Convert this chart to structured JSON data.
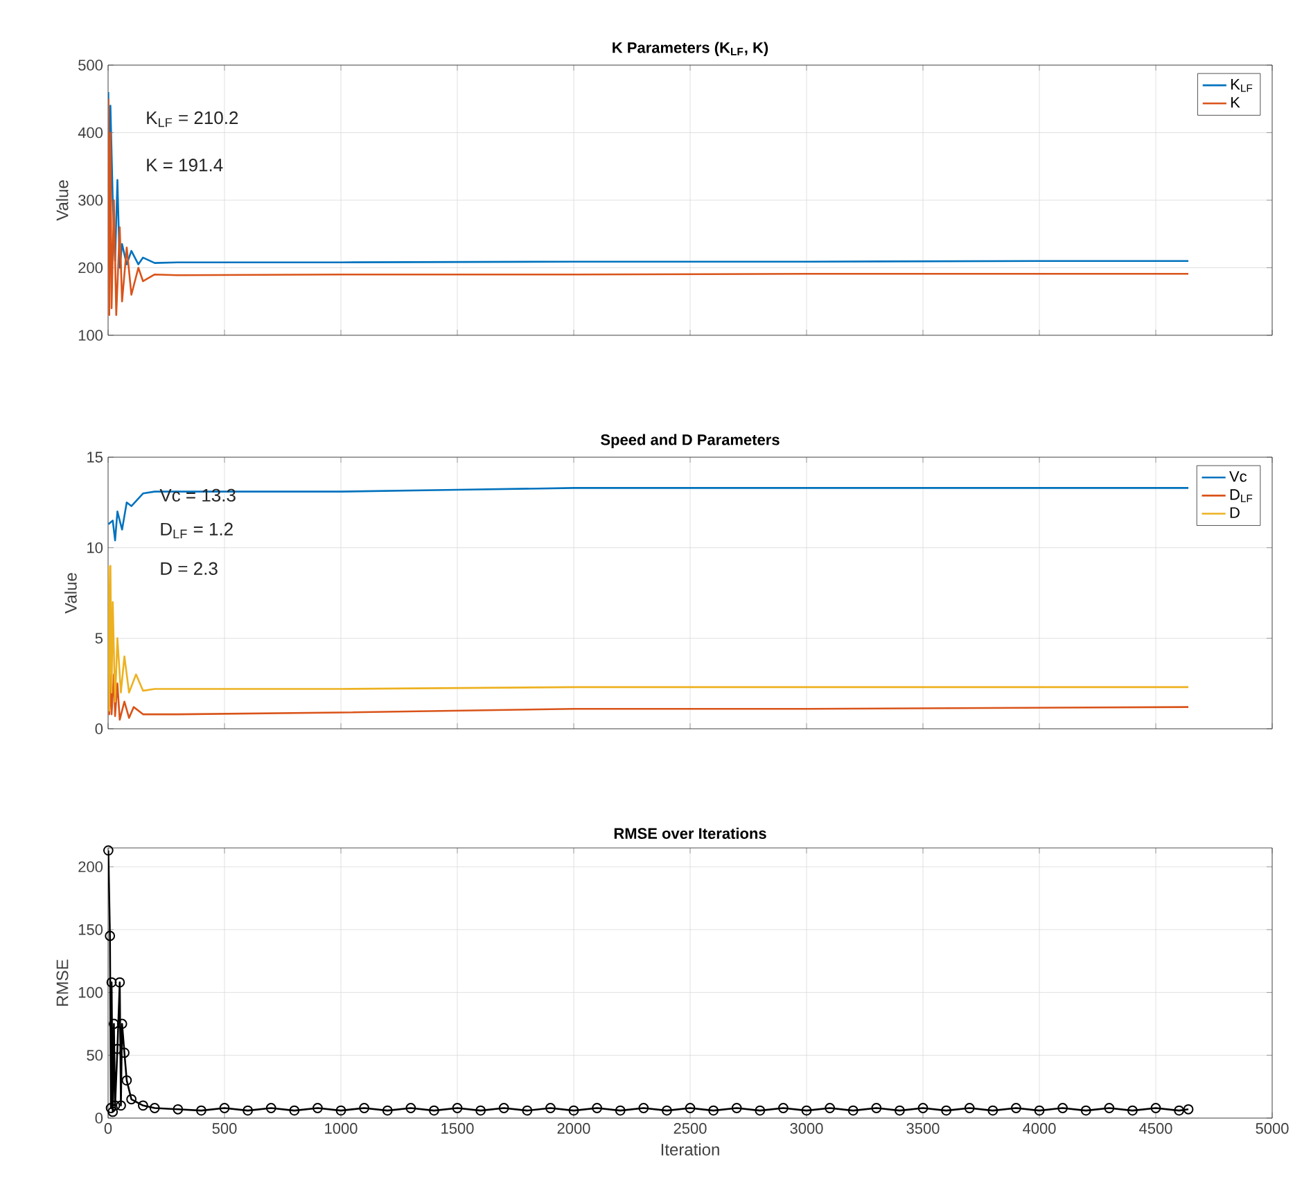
{
  "chart_data": [
    {
      "type": "line",
      "title": "K Parameters (K$_{LF}$, K)",
      "ylabel": "Value",
      "xlim": [
        0,
        5000
      ],
      "ylim": [
        100,
        500
      ],
      "xticks": [
        0,
        500,
        1000,
        1500,
        2000,
        2500,
        3000,
        3500,
        4000,
        4500,
        5000
      ],
      "yticks": [
        100,
        200,
        300,
        400,
        500
      ],
      "grid": true,
      "legend": "top right",
      "tick_labels": "y",
      "annotations": [
        "K$_{LF}$ = 210.2",
        "K = 191.4"
      ],
      "series": [
        {
          "name": "K$_{LF}$",
          "color": "#0072bd",
          "x": [
            1,
            5,
            10,
            15,
            20,
            30,
            40,
            50,
            60,
            80,
            100,
            130,
            150,
            200,
            300,
            1000,
            2000,
            3000,
            4000,
            4640
          ],
          "values": [
            460,
            200,
            440,
            null,
            300,
            210,
            330,
            200,
            235,
            205,
            225,
            205,
            215,
            207,
            208,
            208,
            209,
            209,
            210,
            210
          ]
        },
        {
          "name": "K",
          "color": "#d95319",
          "x": [
            1,
            5,
            10,
            15,
            25,
            35,
            50,
            60,
            80,
            100,
            130,
            150,
            200,
            300,
            1000,
            2000,
            3000,
            4000,
            4640
          ],
          "values": [
            450,
            130,
            400,
            140,
            300,
            130,
            260,
            150,
            230,
            160,
            200,
            180,
            190,
            189,
            190,
            190,
            191,
            191,
            191
          ]
        }
      ]
    },
    {
      "type": "line",
      "title": "Speed and D Parameters",
      "ylabel": "Value",
      "xlim": [
        0,
        5000
      ],
      "ylim": [
        0,
        15
      ],
      "xticks": [
        0,
        500,
        1000,
        1500,
        2000,
        2500,
        3000,
        3500,
        4000,
        4500,
        5000
      ],
      "yticks": [
        0,
        5,
        10,
        15
      ],
      "grid": true,
      "legend": "top right",
      "tick_labels": "y",
      "annotations": [
        "Vc = 13.3",
        "D$_{LF}$ = 1.2",
        "D = 2.3"
      ],
      "series": [
        {
          "name": "Vc",
          "color": "#0072bd",
          "x": [
            1,
            20,
            30,
            40,
            60,
            80,
            100,
            150,
            200,
            500,
            1000,
            1500,
            2000,
            3000,
            4640
          ],
          "values": [
            11.3,
            11.5,
            10.4,
            12,
            11,
            12.5,
            12.3,
            13,
            13.1,
            13.1,
            13.1,
            13.2,
            13.3,
            13.3,
            13.3
          ]
        },
        {
          "name": "D$_{LF}$",
          "color": "#d95319",
          "x": [
            1,
            5,
            10,
            15,
            25,
            30,
            40,
            50,
            70,
            90,
            110,
            150,
            300,
            1000,
            2000,
            3000,
            4640
          ],
          "values": [
            3,
            0.8,
            3,
            0.8,
            3,
            0.7,
            2.5,
            0.5,
            1.5,
            0.6,
            1.2,
            0.8,
            0.8,
            0.9,
            1.1,
            1.1,
            1.2
          ]
        },
        {
          "name": "D",
          "color": "#edb120",
          "x": [
            1,
            5,
            10,
            15,
            20,
            30,
            40,
            55,
            70,
            90,
            120,
            150,
            200,
            1000,
            2000,
            4640
          ],
          "values": [
            9,
            1,
            9,
            2,
            7,
            1.5,
            5,
            2,
            4,
            2,
            3,
            2.1,
            2.2,
            2.2,
            2.3,
            2.3
          ]
        }
      ]
    },
    {
      "type": "line",
      "title": "RMSE over Iterations",
      "xlabel": "Iteration",
      "ylabel": "RMSE",
      "xlim": [
        0,
        5000
      ],
      "ylim": [
        0,
        215
      ],
      "xticks": [
        0,
        500,
        1000,
        1500,
        2000,
        2500,
        3000,
        3500,
        4000,
        4500,
        5000
      ],
      "yticks": [
        0,
        50,
        100,
        150,
        200
      ],
      "grid": true,
      "marker": "circle",
      "series": [
        {
          "color": "#000000",
          "x": [
            1,
            8,
            12,
            15,
            20,
            25,
            30,
            40,
            50,
            55,
            60,
            70,
            80,
            100,
            150,
            200,
            300,
            400,
            500,
            600,
            700,
            800,
            900,
            1000,
            1100,
            1200,
            1300,
            1400,
            1500,
            1600,
            1700,
            1800,
            1900,
            2000,
            2100,
            2200,
            2300,
            2400,
            2500,
            2600,
            2700,
            2800,
            2900,
            3000,
            3100,
            3200,
            3300,
            3400,
            3500,
            3600,
            3700,
            3800,
            3900,
            4000,
            4100,
            4200,
            4300,
            4400,
            4500,
            4600,
            4640
          ],
          "values": [
            213,
            145,
            8,
            108,
            5,
            75,
            10,
            55,
            108,
            10,
            75,
            52,
            30,
            15,
            10,
            8,
            7,
            6,
            8,
            6,
            8,
            6,
            8,
            6,
            8,
            6,
            8,
            6,
            8,
            6,
            8,
            6,
            8,
            6,
            8,
            6,
            8,
            6,
            8,
            6,
            8,
            6,
            8,
            6,
            8,
            6,
            8,
            6,
            8,
            6,
            8,
            6,
            8,
            6,
            8,
            6,
            8,
            6,
            8,
            6,
            7
          ]
        }
      ]
    }
  ]
}
